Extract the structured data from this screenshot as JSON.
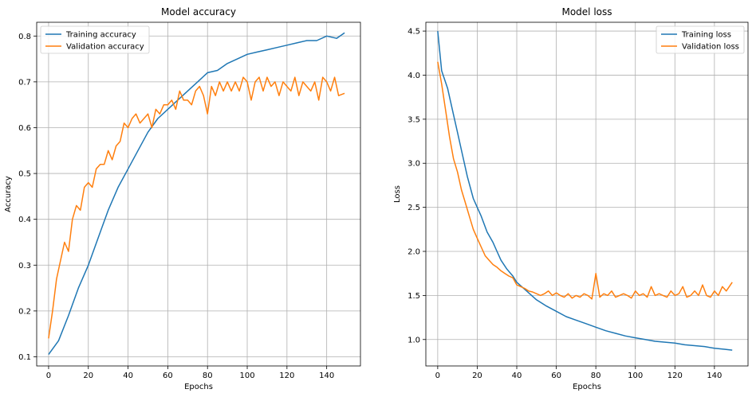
{
  "chart_data": [
    {
      "type": "line",
      "title": "Model accuracy",
      "xlabel": "Epochs",
      "ylabel": "Accuracy",
      "xlim": [
        -6,
        157
      ],
      "ylim": [
        0.08,
        0.83
      ],
      "xticks": [
        0,
        20,
        40,
        60,
        80,
        100,
        120,
        140
      ],
      "yticks": [
        0.1,
        0.2,
        0.3,
        0.4,
        0.5,
        0.6,
        0.7,
        0.8
      ],
      "grid": true,
      "legend_position": "top-left",
      "series": [
        {
          "name": "Training accuracy",
          "color": "#1f77b4",
          "x": [
            0,
            5,
            10,
            15,
            20,
            25,
            30,
            35,
            40,
            45,
            50,
            55,
            60,
            65,
            70,
            75,
            80,
            85,
            90,
            95,
            100,
            105,
            110,
            115,
            120,
            125,
            130,
            135,
            140,
            145,
            149
          ],
          "y": [
            0.105,
            0.135,
            0.19,
            0.25,
            0.3,
            0.36,
            0.42,
            0.47,
            0.51,
            0.55,
            0.59,
            0.62,
            0.64,
            0.66,
            0.68,
            0.7,
            0.72,
            0.725,
            0.74,
            0.75,
            0.76,
            0.765,
            0.77,
            0.775,
            0.78,
            0.785,
            0.79,
            0.79,
            0.8,
            0.795,
            0.807
          ]
        },
        {
          "name": "Validation accuracy",
          "color": "#ff7f0e",
          "x": [
            0,
            2,
            4,
            6,
            8,
            10,
            12,
            14,
            16,
            18,
            20,
            22,
            24,
            26,
            28,
            30,
            32,
            34,
            36,
            38,
            40,
            42,
            44,
            46,
            48,
            50,
            52,
            54,
            56,
            58,
            60,
            62,
            64,
            66,
            68,
            70,
            72,
            74,
            76,
            78,
            80,
            82,
            84,
            86,
            88,
            90,
            92,
            94,
            96,
            98,
            100,
            102,
            104,
            106,
            108,
            110,
            112,
            114,
            116,
            118,
            120,
            122,
            124,
            126,
            128,
            130,
            132,
            134,
            136,
            138,
            140,
            142,
            144,
            146,
            149
          ],
          "y": [
            0.14,
            0.2,
            0.27,
            0.31,
            0.35,
            0.33,
            0.4,
            0.43,
            0.42,
            0.47,
            0.48,
            0.47,
            0.51,
            0.52,
            0.52,
            0.55,
            0.53,
            0.56,
            0.57,
            0.61,
            0.6,
            0.62,
            0.63,
            0.61,
            0.62,
            0.63,
            0.6,
            0.64,
            0.63,
            0.65,
            0.65,
            0.66,
            0.64,
            0.68,
            0.66,
            0.66,
            0.65,
            0.68,
            0.69,
            0.67,
            0.63,
            0.69,
            0.67,
            0.7,
            0.68,
            0.7,
            0.68,
            0.7,
            0.68,
            0.71,
            0.7,
            0.66,
            0.7,
            0.71,
            0.68,
            0.71,
            0.69,
            0.7,
            0.67,
            0.7,
            0.69,
            0.68,
            0.71,
            0.67,
            0.7,
            0.69,
            0.68,
            0.7,
            0.66,
            0.71,
            0.7,
            0.68,
            0.71,
            0.67,
            0.675
          ]
        }
      ]
    },
    {
      "type": "line",
      "title": "Model loss",
      "xlabel": "Epochs",
      "ylabel": "Loss",
      "xlim": [
        -6,
        157
      ],
      "ylim": [
        0.7,
        4.6
      ],
      "xticks": [
        0,
        20,
        40,
        60,
        80,
        100,
        120,
        140
      ],
      "yticks": [
        1.0,
        1.5,
        2.0,
        2.5,
        3.0,
        3.5,
        4.0,
        4.5
      ],
      "ytick_labels": [
        "1.0",
        "1.5",
        "2.0",
        "2.5",
        "3.0",
        "3.5",
        "4.0",
        "4.5"
      ],
      "grid": true,
      "legend_position": "top-right",
      "series": [
        {
          "name": "Training loss",
          "color": "#1f77b4",
          "x": [
            0,
            2,
            5,
            8,
            10,
            12,
            15,
            18,
            20,
            22,
            25,
            28,
            30,
            32,
            35,
            38,
            40,
            45,
            50,
            55,
            60,
            65,
            70,
            75,
            80,
            85,
            90,
            95,
            100,
            105,
            110,
            115,
            120,
            125,
            130,
            135,
            140,
            145,
            149
          ],
          "y": [
            4.5,
            4.05,
            3.85,
            3.55,
            3.35,
            3.15,
            2.85,
            2.6,
            2.5,
            2.4,
            2.22,
            2.1,
            2.0,
            1.9,
            1.8,
            1.72,
            1.65,
            1.55,
            1.45,
            1.38,
            1.32,
            1.26,
            1.22,
            1.18,
            1.14,
            1.1,
            1.07,
            1.04,
            1.02,
            1.0,
            0.98,
            0.97,
            0.96,
            0.94,
            0.93,
            0.92,
            0.9,
            0.89,
            0.88
          ]
        },
        {
          "name": "Validation loss",
          "color": "#ff7f0e",
          "x": [
            0,
            2,
            4,
            6,
            8,
            10,
            12,
            14,
            16,
            18,
            20,
            22,
            24,
            26,
            28,
            30,
            32,
            34,
            36,
            38,
            40,
            42,
            44,
            46,
            48,
            50,
            52,
            54,
            56,
            58,
            60,
            62,
            64,
            66,
            68,
            70,
            72,
            74,
            76,
            78,
            80,
            82,
            84,
            86,
            88,
            90,
            92,
            94,
            96,
            98,
            100,
            102,
            104,
            106,
            108,
            110,
            112,
            114,
            116,
            118,
            120,
            122,
            124,
            126,
            128,
            130,
            132,
            134,
            136,
            138,
            140,
            142,
            144,
            146,
            149
          ],
          "y": [
            4.15,
            3.9,
            3.6,
            3.3,
            3.05,
            2.9,
            2.7,
            2.55,
            2.4,
            2.25,
            2.15,
            2.05,
            1.95,
            1.9,
            1.85,
            1.82,
            1.78,
            1.75,
            1.72,
            1.7,
            1.62,
            1.6,
            1.58,
            1.55,
            1.54,
            1.52,
            1.5,
            1.52,
            1.55,
            1.5,
            1.53,
            1.5,
            1.48,
            1.52,
            1.47,
            1.5,
            1.48,
            1.52,
            1.5,
            1.46,
            1.75,
            1.48,
            1.52,
            1.5,
            1.55,
            1.48,
            1.5,
            1.52,
            1.5,
            1.47,
            1.55,
            1.5,
            1.52,
            1.48,
            1.6,
            1.5,
            1.52,
            1.5,
            1.48,
            1.55,
            1.5,
            1.52,
            1.6,
            1.48,
            1.5,
            1.55,
            1.5,
            1.62,
            1.5,
            1.48,
            1.55,
            1.5,
            1.6,
            1.55,
            1.65
          ]
        }
      ]
    }
  ]
}
